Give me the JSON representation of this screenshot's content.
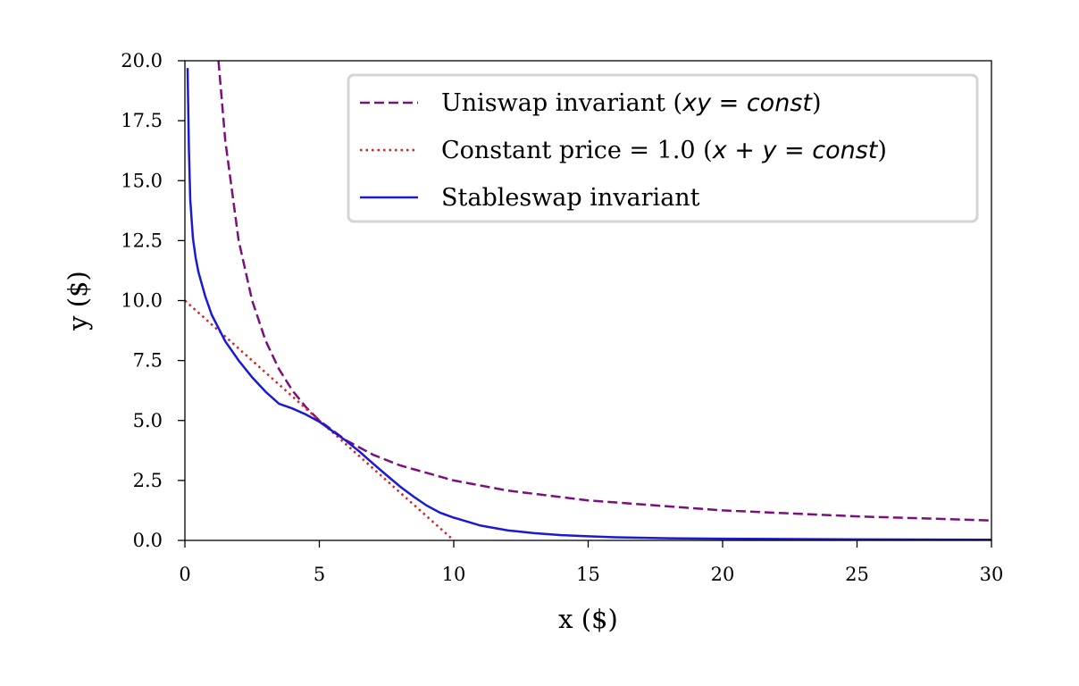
{
  "chart_data": {
    "type": "line",
    "xlabel": "x ($)",
    "ylabel": "y ($)",
    "xlim": [
      0,
      30
    ],
    "ylim": [
      0,
      20
    ],
    "x_ticks": [
      "0",
      "5",
      "10",
      "15",
      "20",
      "25",
      "30"
    ],
    "y_ticks": [
      "0.0",
      "2.5",
      "5.0",
      "7.5",
      "10.0",
      "12.5",
      "15.0",
      "17.5",
      "20.0"
    ],
    "grid": false,
    "legend_position": "top-right",
    "series": [
      {
        "name": "Uniswap invariant (xy = const)",
        "legend_plain": "Uniswap invariant (",
        "legend_math": "xy = const",
        "legend_close": ")",
        "color": "#7b0f7b",
        "style": "dashed",
        "x": [
          1.25,
          1.5,
          2,
          2.5,
          3,
          3.5,
          4,
          4.5,
          5,
          6,
          7,
          8,
          10,
          12,
          15,
          20,
          25,
          30
        ],
        "y": [
          20.0,
          16.67,
          12.5,
          10.0,
          8.33,
          7.14,
          6.25,
          5.56,
          5.0,
          4.17,
          3.57,
          3.13,
          2.5,
          2.08,
          1.67,
          1.25,
          1.0,
          0.83
        ]
      },
      {
        "name": "Constant price = 1.0 (x + y = const)",
        "legend_plain": "Constant price = 1.0 (",
        "legend_math": "x + y = const",
        "legend_close": ")",
        "color": "#e02020",
        "style": "dotted",
        "x": [
          0,
          10
        ],
        "y": [
          10.0,
          0.0
        ]
      },
      {
        "name": "Stableswap invariant",
        "legend_plain": "Stableswap invariant",
        "legend_math": "",
        "legend_close": "",
        "color": "#1a1ad6",
        "style": "solid",
        "x": [
          0.1,
          0.15,
          0.2,
          0.3,
          0.4,
          0.5,
          0.75,
          1,
          1.5,
          2,
          2.5,
          3,
          3.5,
          4,
          4.5,
          5,
          5.5,
          6,
          6.5,
          7,
          7.5,
          8,
          8.5,
          9,
          9.5,
          10,
          11,
          12,
          13,
          14,
          15,
          16,
          18,
          20,
          25,
          30
        ],
        "y": [
          19.7,
          16.3,
          14.2,
          12.6,
          11.8,
          11.2,
          10.2,
          9.4,
          8.3,
          7.5,
          6.8,
          6.2,
          5.7,
          5.5,
          5.25,
          4.95,
          4.55,
          4.15,
          3.7,
          3.2,
          2.72,
          2.25,
          1.83,
          1.45,
          1.15,
          0.95,
          0.62,
          0.42,
          0.3,
          0.22,
          0.17,
          0.13,
          0.09,
          0.07,
          0.04,
          0.03
        ]
      }
    ]
  }
}
